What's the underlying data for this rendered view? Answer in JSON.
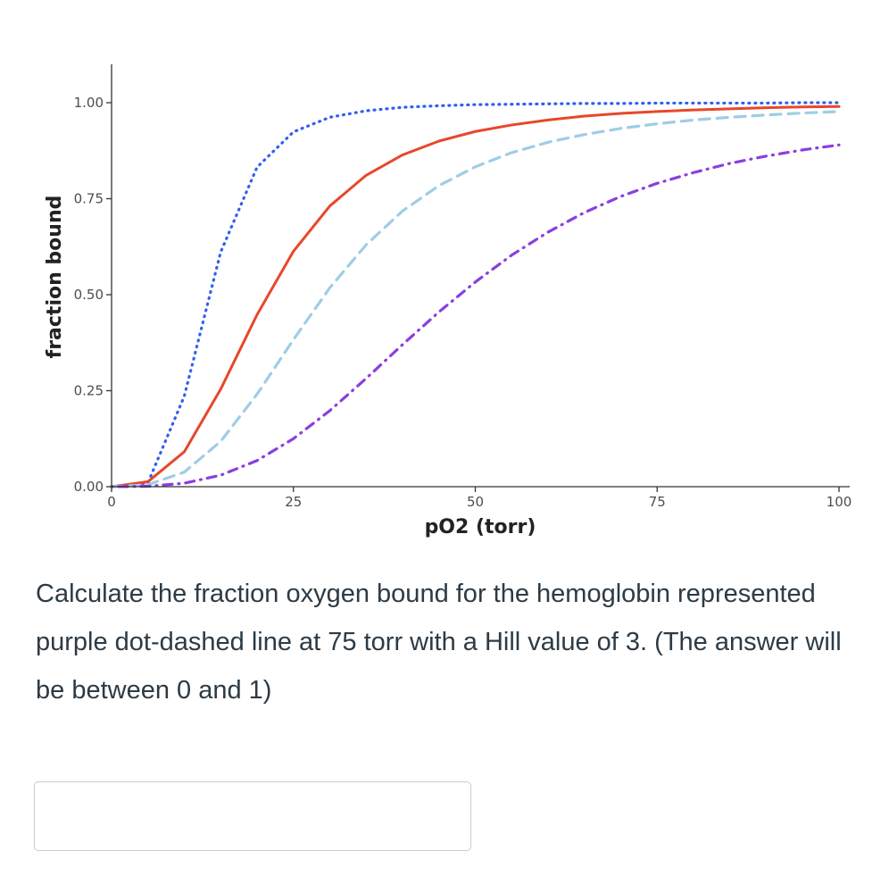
{
  "chart_data": {
    "type": "line",
    "title": "",
    "xlabel": "pO2 (torr)",
    "ylabel": "fraction bound",
    "xlim": [
      0,
      100
    ],
    "ylim": [
      0,
      1
    ],
    "xticks": [
      0,
      25,
      50,
      75,
      100
    ],
    "yticks": [
      0,
      0.25,
      0.5,
      0.75,
      1
    ],
    "xtick_labels": [
      "0",
      "25",
      "50",
      "75",
      "100"
    ],
    "ytick_labels": [
      "0.00",
      "0.25",
      "0.50",
      "0.75",
      "1.00"
    ],
    "grid": false,
    "legend": "none",
    "series": [
      {
        "style": "dotted",
        "color": "#2f5ff0",
        "x": [
          0,
          5,
          10,
          15,
          20,
          25,
          30,
          35,
          40,
          45,
          50,
          55,
          60,
          65,
          70,
          75,
          80,
          85,
          90,
          95,
          100
        ],
        "y": [
          0.0,
          0.01,
          0.236,
          0.611,
          0.832,
          0.924,
          0.962,
          0.979,
          0.988,
          0.992,
          0.995,
          0.996,
          0.997,
          0.998,
          0.998,
          0.999,
          0.999,
          0.999,
          0.999,
          1.0,
          1.0
        ]
      },
      {
        "style": "solid",
        "color": "#e8472a",
        "x": [
          0,
          5,
          10,
          15,
          20,
          25,
          30,
          35,
          40,
          45,
          50,
          55,
          60,
          65,
          70,
          75,
          80,
          85,
          90,
          95,
          100
        ],
        "y": [
          0.0,
          0.013,
          0.091,
          0.254,
          0.448,
          0.613,
          0.731,
          0.811,
          0.864,
          0.9,
          0.925,
          0.942,
          0.955,
          0.965,
          0.972,
          0.977,
          0.981,
          0.984,
          0.987,
          0.989,
          0.99
        ]
      },
      {
        "style": "dashed",
        "color": "#9fcde6",
        "x": [
          0,
          5,
          10,
          15,
          20,
          25,
          30,
          35,
          40,
          45,
          50,
          55,
          60,
          65,
          70,
          75,
          80,
          85,
          90,
          95,
          100
        ],
        "y": [
          0.0,
          0.005,
          0.038,
          0.118,
          0.241,
          0.383,
          0.518,
          0.63,
          0.718,
          0.784,
          0.833,
          0.87,
          0.897,
          0.917,
          0.933,
          0.945,
          0.955,
          0.962,
          0.968,
          0.973,
          0.977
        ]
      },
      {
        "style": "dotdash",
        "color": "#8a3fe0",
        "x": [
          0,
          5,
          10,
          15,
          20,
          25,
          30,
          35,
          40,
          45,
          50,
          55,
          60,
          65,
          70,
          75,
          80,
          85,
          90,
          95,
          100
        ],
        "y": [
          0.0,
          0.001,
          0.009,
          0.03,
          0.068,
          0.125,
          0.198,
          0.282,
          0.37,
          0.455,
          0.533,
          0.603,
          0.663,
          0.714,
          0.756,
          0.79,
          0.818,
          0.842,
          0.861,
          0.877,
          0.89
        ]
      }
    ]
  },
  "question": {
    "text": "Calculate the fraction oxygen bound for the hemoglobin represented purple dot-dashed line at 75 torr with a Hill value of 3. (The answer will be between 0 and 1)"
  },
  "answer": {
    "value": "",
    "placeholder": ""
  }
}
